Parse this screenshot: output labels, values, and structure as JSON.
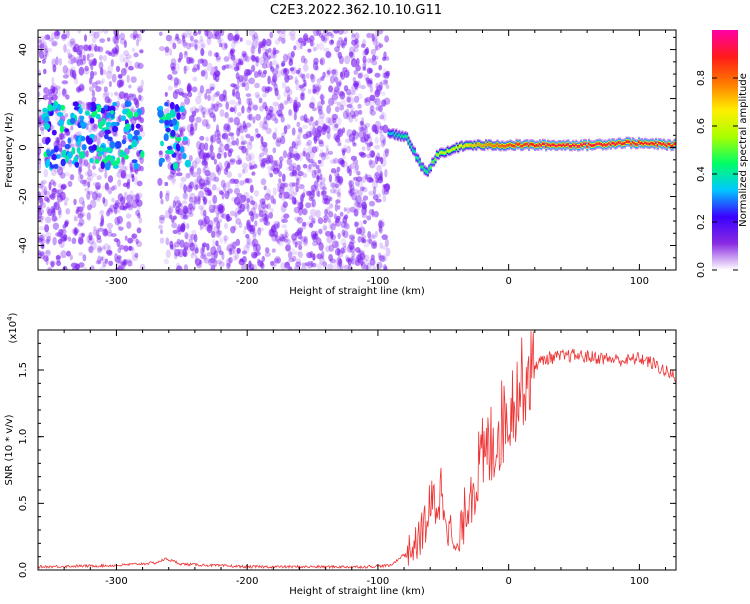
{
  "title": "C2E3.2022.362.10.10.G11",
  "colors": {
    "axis": "#000000",
    "snr_line": "#ee3333",
    "spectrogram_scatter": "#7a1cf0",
    "colorbar_stops": [
      "#ffffff",
      "#8a2be2",
      "#3a00ff",
      "#00c8ff",
      "#00ff66",
      "#aaff00",
      "#ffee00",
      "#ff7a00",
      "#ff1a1a",
      "#ff00a8"
    ]
  },
  "chart_data": [
    {
      "type": "heatmap",
      "xlabel": "Height of straight line (km)",
      "ylabel": "Frequency (Hz)",
      "xlim": [
        -360,
        128
      ],
      "ylim": [
        -50,
        48
      ],
      "xticks": [
        -300,
        -200,
        -100,
        0,
        100
      ],
      "yticks": [
        -40,
        -20,
        0,
        20,
        40
      ],
      "colorbar": {
        "label": "Normalized spectral amplitude",
        "range": [
          0.0,
          1.0
        ],
        "ticks": [
          "0.0",
          "0.2",
          "0.4",
          "0.6",
          "0.8"
        ]
      },
      "noise_region": {
        "x_range": [
          -360,
          -92
        ],
        "amplitude_range": [
          0.05,
          0.3
        ]
      },
      "gaps": [
        [
          -280,
          -267
        ],
        [
          -265,
          -262
        ]
      ],
      "signal_track": [
        {
          "x": -92,
          "freq": 6,
          "amp": 0.35
        },
        {
          "x": -85,
          "freq": 5,
          "amp": 0.4
        },
        {
          "x": -78,
          "freq": 4,
          "amp": 0.45
        },
        {
          "x": -72,
          "freq": -2,
          "amp": 0.4
        },
        {
          "x": -67,
          "freq": -8,
          "amp": 0.45
        },
        {
          "x": -62,
          "freq": -10,
          "amp": 0.45
        },
        {
          "x": -55,
          "freq": -3,
          "amp": 0.55
        },
        {
          "x": -48,
          "freq": -2,
          "amp": 0.6
        },
        {
          "x": -40,
          "freq": 0,
          "amp": 0.65
        },
        {
          "x": -30,
          "freq": 1,
          "amp": 0.7
        },
        {
          "x": -20,
          "freq": 1,
          "amp": 0.75
        },
        {
          "x": -10,
          "freq": 1,
          "amp": 0.8
        },
        {
          "x": 0,
          "freq": 1,
          "amp": 0.85
        },
        {
          "x": 20,
          "freq": 1,
          "amp": 0.9
        },
        {
          "x": 60,
          "freq": 1,
          "amp": 0.92
        },
        {
          "x": 90,
          "freq": 2,
          "amp": 0.9
        },
        {
          "x": 128,
          "freq": 1,
          "amp": 0.9
        }
      ]
    },
    {
      "type": "line",
      "xlabel": "Height of straight line (km)",
      "ylabel": "SNR (10 * v/v)",
      "y_multiplier": "(x10",
      "y_multiplier_exp": "4",
      "xlim": [
        -360,
        128
      ],
      "ylim": [
        0,
        1.8
      ],
      "xticks": [
        -300,
        -200,
        -100,
        0,
        100
      ],
      "yticks": [
        "0.0",
        "0.5",
        "1.0",
        "1.5"
      ],
      "series": [
        {
          "x": [
            -360,
            -300,
            -270,
            -262,
            -250,
            -200,
            -150,
            -110,
            -90,
            -70,
            -60,
            -50,
            -45,
            -40,
            -35,
            -30,
            -20,
            -10,
            0,
            10,
            20,
            30,
            50,
            70,
            90,
            100,
            110,
            128
          ],
          "y": [
            0.02,
            0.03,
            0.05,
            0.08,
            0.04,
            0.02,
            0.02,
            0.02,
            0.03,
            0.2,
            0.45,
            0.6,
            0.3,
            0.1,
            0.35,
            0.6,
            0.8,
            1.0,
            1.2,
            1.4,
            1.55,
            1.6,
            1.62,
            1.6,
            1.58,
            1.6,
            1.56,
            1.45
          ]
        }
      ]
    }
  ]
}
